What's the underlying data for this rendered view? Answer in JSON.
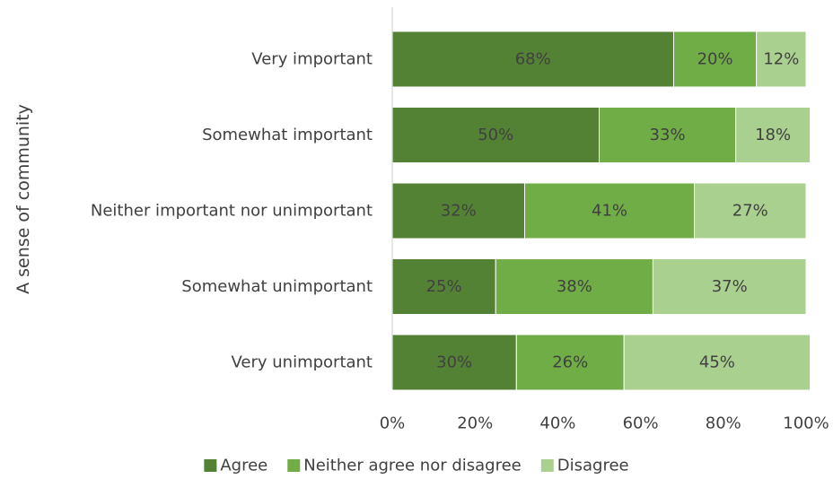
{
  "chart_data": {
    "type": "bar",
    "orientation": "horizontal",
    "stacked": true,
    "title": "",
    "xlabel": "",
    "ylabel": "A sense of community",
    "xlim": [
      0,
      100
    ],
    "x_ticks": [
      "0%",
      "20%",
      "40%",
      "60%",
      "80%",
      "100%"
    ],
    "categories": [
      "Very important",
      "Somewhat important",
      "Neither important nor unimportant",
      "Somewhat unimportant",
      "Very unimportant"
    ],
    "series": [
      {
        "name": "Agree",
        "color": "#548235",
        "values": [
          68,
          50,
          32,
          25,
          30
        ]
      },
      {
        "name": "Neither agree nor disagree",
        "color": "#70AD47",
        "values": [
          20,
          33,
          41,
          38,
          26
        ]
      },
      {
        "name": "Disagree",
        "color": "#A9D08E",
        "values": [
          12,
          18,
          27,
          37,
          45
        ]
      }
    ],
    "value_suffix": "%",
    "legend_position": "bottom",
    "grid": false
  }
}
